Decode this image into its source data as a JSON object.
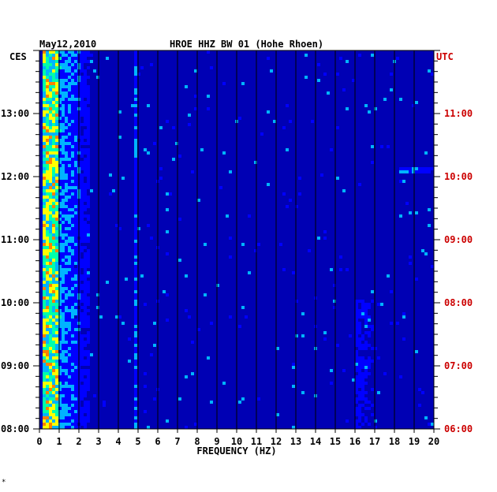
{
  "chart_data": {
    "type": "heatmap",
    "title": "HROE HHZ BW 01 (Hohe Rhoen)",
    "date": "May12,2010",
    "xlabel": "FREQUENCY (HZ)",
    "xlim": [
      0,
      20
    ],
    "x_ticks": [
      "0",
      "1",
      "2",
      "3",
      "4",
      "5",
      "6",
      "7",
      "8",
      "9",
      "10",
      "11",
      "12",
      "13",
      "14",
      "15",
      "16",
      "17",
      "18",
      "19",
      "20"
    ],
    "left_axis": {
      "label": "CES",
      "ticks": [
        "08:00",
        "09:00",
        "10:00",
        "11:00",
        "12:00",
        "13:00"
      ],
      "range": [
        "08:00",
        "14:00"
      ]
    },
    "right_axis": {
      "label": "UTC",
      "ticks": [
        "06:00",
        "07:00",
        "08:00",
        "09:00",
        "10:00",
        "11:00"
      ],
      "range": [
        "06:00",
        "12:00"
      ]
    },
    "colors": {
      "background": "#0000b4",
      "low": "#0000ff",
      "mid": "#00b4ff",
      "high": "#ffff00",
      "peak": "#ff0000",
      "right_axis": "#cc0000"
    },
    "bands": [
      {
        "x": [
          0.2,
          1.0
        ],
        "intensity": "high"
      },
      {
        "x": [
          1.0,
          2.6
        ],
        "intensity": "mid"
      },
      {
        "x": [
          4.8,
          5.0
        ],
        "intensity": "mid"
      },
      {
        "x": [
          16.0,
          17.0
        ],
        "intensity": "low",
        "time": [
          "08:00",
          "10:00"
        ]
      },
      {
        "x": [
          18.2,
          20.0
        ],
        "intensity": "mid",
        "time": [
          "12:04",
          "12:06"
        ]
      }
    ]
  },
  "footer_mark": "*"
}
